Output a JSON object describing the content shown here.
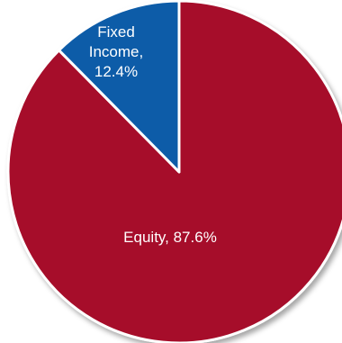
{
  "chart_data": {
    "type": "pie",
    "slices": [
      {
        "label": "Equity",
        "value": 87.6,
        "color": "#A6102B",
        "label_text": [
          "Equity,  87.6%"
        ]
      },
      {
        "label": "Fixed Income",
        "value": 12.4,
        "color": "#0B5BA8",
        "label_text": [
          "Fixed",
          "Income,",
          "12.4%"
        ]
      }
    ],
    "start_angle_deg": 0,
    "direction": "clockwise",
    "legend": "none"
  }
}
